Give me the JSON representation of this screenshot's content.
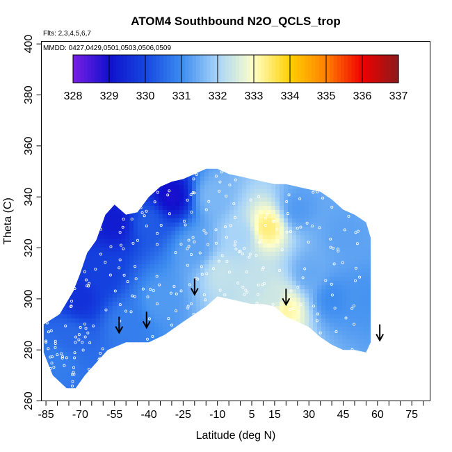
{
  "chart_data": {
    "type": "heatmap",
    "title": "ATOM4 Southbound N2O_QCLS_trop",
    "annotations": [
      "Flts: 2,3,4,5,6,7",
      "MMDD: 0427,0429,0501,0503,0506,0509"
    ],
    "xlabel": "Latitude (deg N)",
    "ylabel": "Theta (C)",
    "xlim": [
      -87,
      83
    ],
    "ylim": [
      260,
      401
    ],
    "x_ticks": [
      -85,
      -70,
      -55,
      -40,
      -25,
      -10,
      5,
      15,
      30,
      45,
      60,
      75
    ],
    "x_minor_ticks": [
      -80,
      -75,
      -65,
      -60,
      -50,
      -45,
      -35,
      -30,
      -20,
      -15,
      -5,
      0,
      10,
      20,
      25,
      35,
      40,
      50,
      55,
      65,
      70,
      80
    ],
    "y_ticks": [
      260,
      280,
      300,
      320,
      340,
      360,
      380,
      400
    ],
    "colorbar": {
      "min": 328,
      "max": 337,
      "ticks": [
        328,
        329,
        330,
        331,
        332,
        333,
        334,
        335,
        336,
        337
      ],
      "colors": [
        "#7a1fe6",
        "#1010cc",
        "#1546e0",
        "#3c8cf0",
        "#a8d4f8",
        "#ffffc8",
        "#ffd000",
        "#ff8000",
        "#f00000",
        "#8b1a1a"
      ]
    },
    "arrows": [
      {
        "lat": -53,
        "theta": 287
      },
      {
        "lat": -41,
        "theta": 289
      },
      {
        "lat": -20,
        "theta": 302
      },
      {
        "lat": 20,
        "theta": 298
      },
      {
        "lat": 61,
        "theta": 284
      }
    ],
    "boundary": {
      "top": [
        [
          -86,
          290
        ],
        [
          -79,
          294
        ],
        [
          -73,
          303
        ],
        [
          -70,
          310
        ],
        [
          -67,
          318
        ],
        [
          -63,
          323
        ],
        [
          -59,
          333
        ],
        [
          -55,
          337
        ],
        [
          -50,
          333
        ],
        [
          -45,
          334
        ],
        [
          -40,
          340
        ],
        [
          -35,
          344
        ],
        [
          -30,
          346
        ],
        [
          -25,
          347
        ],
        [
          -20,
          349
        ],
        [
          -15,
          351
        ],
        [
          -10,
          351
        ],
        [
          -5,
          349
        ],
        [
          0,
          348
        ],
        [
          5,
          347
        ],
        [
          10,
          346
        ],
        [
          15,
          345
        ],
        [
          20,
          345
        ],
        [
          25,
          344
        ],
        [
          30,
          343
        ],
        [
          35,
          342
        ],
        [
          40,
          339
        ],
        [
          45,
          335
        ],
        [
          50,
          333
        ],
        [
          55,
          330
        ],
        [
          57,
          324
        ]
      ],
      "bottom": [
        [
          -86,
          279
        ],
        [
          -82,
          270
        ],
        [
          -76,
          265
        ],
        [
          -72,
          265
        ],
        [
          -68,
          270
        ],
        [
          -63,
          275
        ],
        [
          -58,
          280
        ],
        [
          -50,
          283
        ],
        [
          -40,
          283
        ],
        [
          -33,
          286
        ],
        [
          -25,
          291
        ],
        [
          -15,
          297
        ],
        [
          -10,
          301
        ],
        [
          -5,
          300
        ],
        [
          0,
          299
        ],
        [
          5,
          298
        ],
        [
          10,
          298
        ],
        [
          15,
          297
        ],
        [
          20,
          293
        ],
        [
          25,
          291
        ],
        [
          30,
          289
        ],
        [
          35,
          285
        ],
        [
          40,
          282
        ],
        [
          45,
          280
        ],
        [
          50,
          280
        ],
        [
          55,
          279
        ],
        [
          57,
          283
        ]
      ]
    },
    "field": [
      {
        "lat": -80,
        "theta": 275,
        "value": 330.8
      },
      {
        "lat": -75,
        "theta": 285,
        "value": 330.5
      },
      {
        "lat": -70,
        "theta": 300,
        "value": 329.6
      },
      {
        "lat": -60,
        "theta": 310,
        "value": 329.9
      },
      {
        "lat": -55,
        "theta": 330,
        "value": 329.2
      },
      {
        "lat": -50,
        "theta": 290,
        "value": 330.8
      },
      {
        "lat": -40,
        "theta": 330,
        "value": 330.3
      },
      {
        "lat": -35,
        "theta": 300,
        "value": 331.2
      },
      {
        "lat": -30,
        "theta": 340,
        "value": 328.9
      },
      {
        "lat": -20,
        "theta": 320,
        "value": 331.3
      },
      {
        "lat": -12,
        "theta": 340,
        "value": 331.6
      },
      {
        "lat": -8,
        "theta": 310,
        "value": 332.3
      },
      {
        "lat": 0,
        "theta": 325,
        "value": 332.0
      },
      {
        "lat": 5,
        "theta": 305,
        "value": 332.3
      },
      {
        "lat": 12,
        "theta": 328,
        "value": 333.4
      },
      {
        "lat": 15,
        "theta": 300,
        "value": 332.4
      },
      {
        "lat": 20,
        "theta": 296,
        "value": 333.2
      },
      {
        "lat": 25,
        "theta": 335,
        "value": 331.2
      },
      {
        "lat": 30,
        "theta": 310,
        "value": 331.4
      },
      {
        "lat": 40,
        "theta": 300,
        "value": 331.0
      },
      {
        "lat": 45,
        "theta": 325,
        "value": 331.3
      },
      {
        "lat": 55,
        "theta": 300,
        "value": 331.1
      }
    ]
  }
}
